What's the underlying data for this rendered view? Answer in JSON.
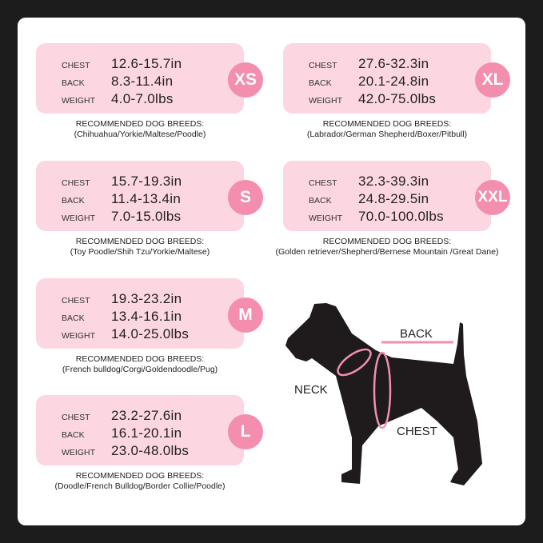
{
  "labels": {
    "chest": "CHEST",
    "back": "BACK",
    "weight": "WEIGHT",
    "recommended": "RECOMMENDED DOG BREEDS:"
  },
  "sizes": [
    {
      "size": "XS",
      "chest": "12.6-15.7in",
      "back": "8.3-11.4in",
      "weight": "4.0-7.0lbs",
      "breeds": "(Chihuahua/Yorkie/Maltese/Poodle)"
    },
    {
      "size": "S",
      "chest": "15.7-19.3in",
      "back": "11.4-13.4in",
      "weight": "7.0-15.0lbs",
      "breeds": "(Toy Poodle/Shih Tzu/Yorkie/Maltese)"
    },
    {
      "size": "M",
      "chest": "19.3-23.2in",
      "back": "13.4-16.1in",
      "weight": "14.0-25.0lbs",
      "breeds": "(French bulldog/Corgi/Goldendoodle/Pug)"
    },
    {
      "size": "L",
      "chest": "23.2-27.6in",
      "back": "16.1-20.1in",
      "weight": "23.0-48.0lbs",
      "breeds": "(Doodle/French Bulldog/Border Collie/Poodle)"
    },
    {
      "size": "XL",
      "chest": "27.6-32.3in",
      "back": "20.1-24.8in",
      "weight": "42.0-75.0lbs",
      "breeds": "(Labrador/German Shepherd/Boxer/Pitbull)"
    },
    {
      "size": "XXL",
      "chest": "32.3-39.3in",
      "back": "24.8-29.5in",
      "weight": "70.0-100.0lbs",
      "breeds": "(Golden retriever/Shepherd/Bernese Mountain /Great Dane)"
    }
  ],
  "diagram": {
    "back": "BACK",
    "neck": "NECK",
    "chest": "CHEST"
  },
  "colors": {
    "card": "#fcd6e0",
    "badge": "#f38eae",
    "measure_line": "#f08fb0",
    "dog": "#1f1a1c"
  }
}
